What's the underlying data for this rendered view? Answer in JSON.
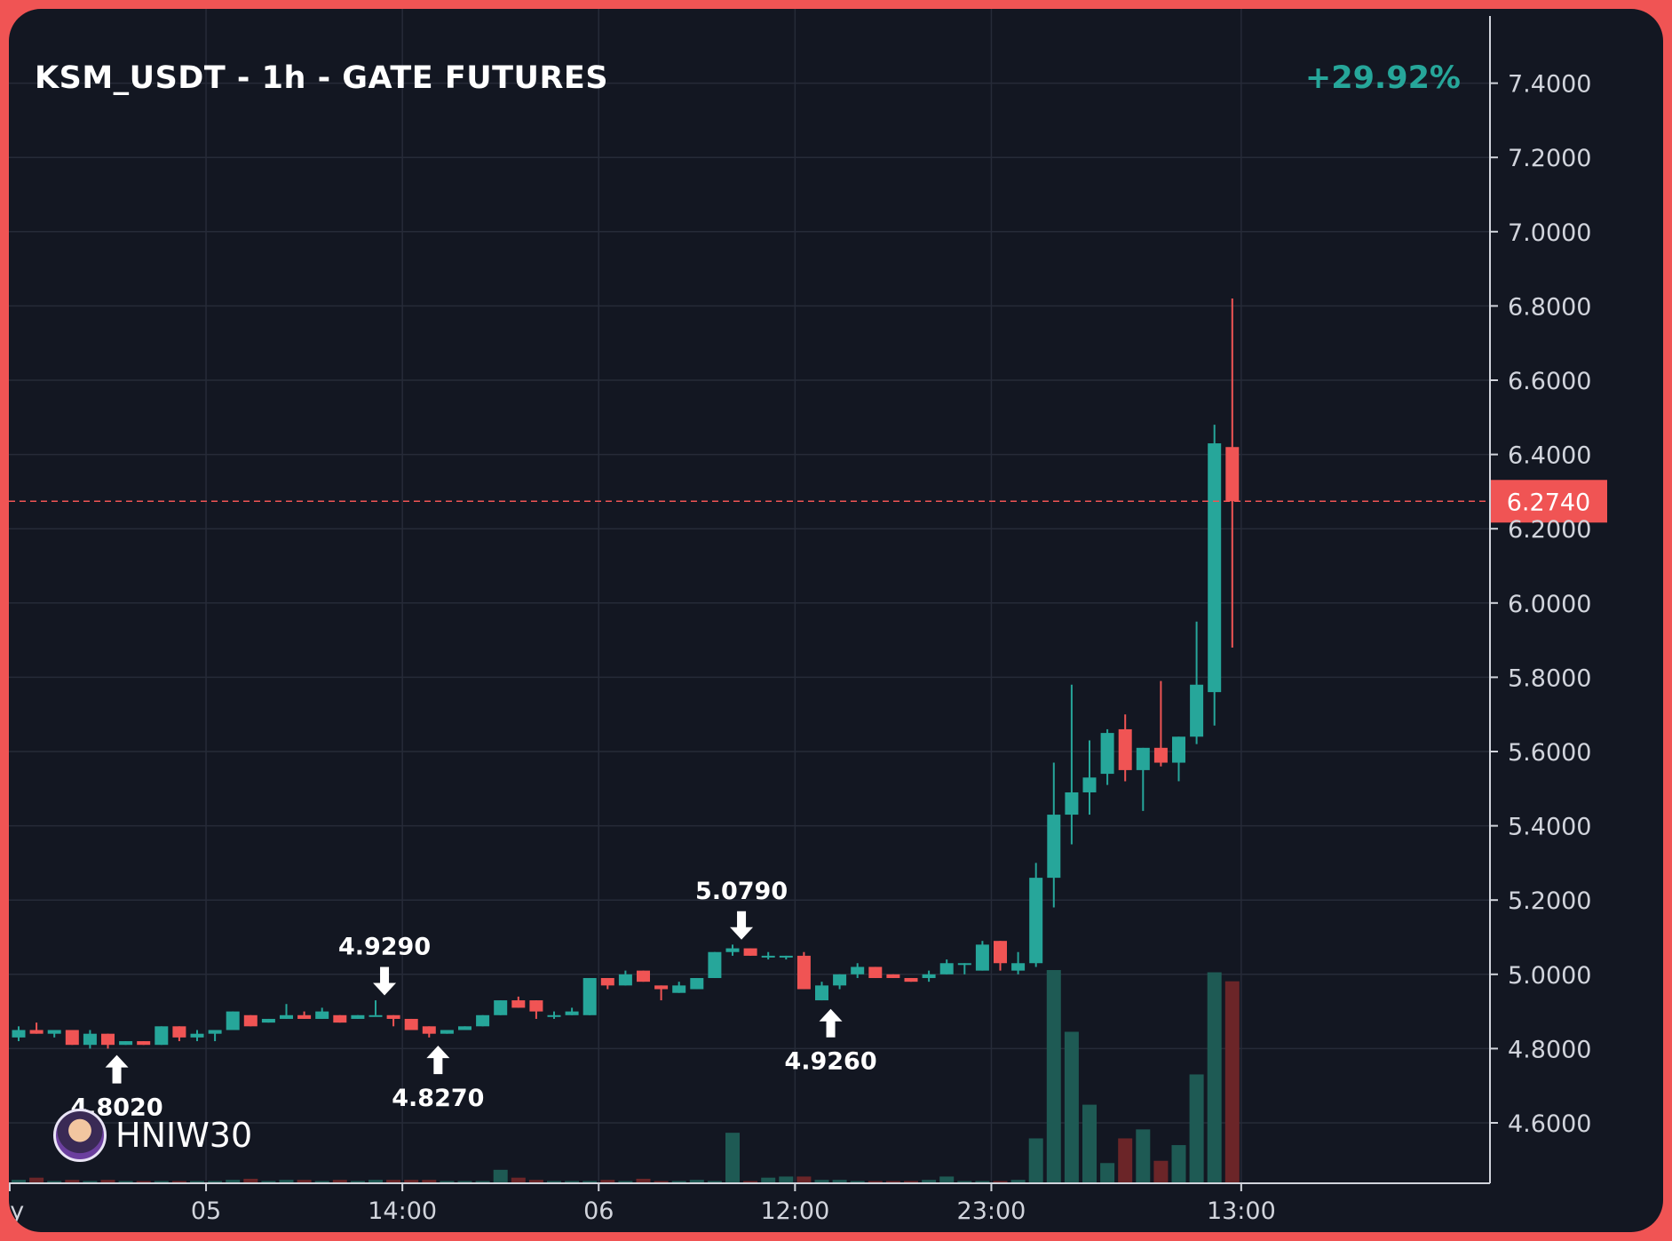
{
  "header": {
    "title": "KSM_USDT - 1h - GATE FUTURES",
    "change": "+29.92%"
  },
  "watermark": {
    "handle": "HNIW30",
    "avatar_icon": "avatar-icon"
  },
  "colors": {
    "background": "#131722",
    "frame": "#f05454",
    "up": "#26a69a",
    "down": "#f05454",
    "grid": "#262b38",
    "axis": "#d1d4dc",
    "volume_up": "#1e5a54",
    "volume_down": "#6b2528"
  },
  "chart_data": {
    "type": "candlestick",
    "title": "KSM_USDT - 1h - GATE FUTURES",
    "ylim": [
      4.44,
      7.56
    ],
    "y_ticks": [
      "4.6000",
      "4.8000",
      "5.0000",
      "5.2000",
      "5.4000",
      "5.6000",
      "5.8000",
      "6.0000",
      "6.2000",
      "6.4000",
      "6.6000",
      "6.8000",
      "7.0000",
      "7.2000",
      "7.4000"
    ],
    "x_ticks": [
      {
        "label": "ay",
        "index": -0.5
      },
      {
        "label": "05",
        "index": 10.5
      },
      {
        "label": "14:00",
        "index": 21.5
      },
      {
        "label": "06",
        "index": 32.5
      },
      {
        "label": "12:00",
        "index": 43.5
      },
      {
        "label": "23:00",
        "index": 54.5
      },
      {
        "label": "13:00",
        "index": 68.5
      }
    ],
    "last_price": "6.2740",
    "last_price_value": 6.274,
    "annotations": [
      {
        "label": "4.8020",
        "index": 5.5,
        "type": "low"
      },
      {
        "label": "4.9290",
        "index": 20.5,
        "type": "high"
      },
      {
        "label": "4.8270",
        "index": 23.5,
        "type": "low"
      },
      {
        "label": "5.0790",
        "index": 40.5,
        "type": "high"
      },
      {
        "label": "4.9260",
        "index": 45.5,
        "type": "low"
      }
    ],
    "candles": [
      [
        4.83,
        4.86,
        4.82,
        4.85,
        3
      ],
      [
        4.85,
        4.87,
        4.84,
        4.84,
        5
      ],
      [
        4.84,
        4.85,
        4.83,
        4.85,
        2
      ],
      [
        4.85,
        4.85,
        4.81,
        4.81,
        3
      ],
      [
        4.81,
        4.85,
        4.8,
        4.84,
        2
      ],
      [
        4.84,
        4.84,
        4.8,
        4.81,
        3
      ],
      [
        4.81,
        4.82,
        4.81,
        4.82,
        2
      ],
      [
        4.82,
        4.82,
        4.81,
        4.81,
        2
      ],
      [
        4.81,
        4.86,
        4.81,
        4.86,
        2
      ],
      [
        4.86,
        4.86,
        4.82,
        4.83,
        2
      ],
      [
        4.83,
        4.85,
        4.82,
        4.84,
        2
      ],
      [
        4.84,
        4.85,
        4.82,
        4.85,
        2
      ],
      [
        4.85,
        4.9,
        4.85,
        4.9,
        3
      ],
      [
        4.89,
        4.89,
        4.86,
        4.86,
        4
      ],
      [
        4.87,
        4.88,
        4.87,
        4.88,
        2
      ],
      [
        4.88,
        4.92,
        4.88,
        4.89,
        3
      ],
      [
        4.89,
        4.9,
        4.88,
        4.88,
        3
      ],
      [
        4.88,
        4.91,
        4.88,
        4.9,
        2
      ],
      [
        4.89,
        4.89,
        4.87,
        4.87,
        3
      ],
      [
        4.88,
        4.89,
        4.88,
        4.89,
        2
      ],
      [
        4.89,
        4.93,
        4.89,
        4.89,
        3
      ],
      [
        4.89,
        4.89,
        4.86,
        4.88,
        3
      ],
      [
        4.88,
        4.88,
        4.85,
        4.85,
        3
      ],
      [
        4.86,
        4.86,
        4.83,
        4.84,
        3
      ],
      [
        4.84,
        4.85,
        4.84,
        4.85,
        2
      ],
      [
        4.85,
        4.86,
        4.85,
        4.86,
        2
      ],
      [
        4.86,
        4.89,
        4.86,
        4.89,
        2
      ],
      [
        4.89,
        4.93,
        4.89,
        4.93,
        12
      ],
      [
        4.93,
        4.94,
        4.91,
        4.91,
        5
      ],
      [
        4.93,
        4.93,
        4.88,
        4.9,
        3
      ],
      [
        4.89,
        4.9,
        4.88,
        4.89,
        2
      ],
      [
        4.89,
        4.91,
        4.89,
        4.9,
        2
      ],
      [
        4.89,
        4.99,
        4.89,
        4.99,
        2
      ],
      [
        4.99,
        4.99,
        4.96,
        4.97,
        3
      ],
      [
        4.97,
        5.01,
        4.97,
        5.0,
        2
      ],
      [
        5.01,
        5.01,
        4.98,
        4.98,
        4
      ],
      [
        4.97,
        4.97,
        4.93,
        4.96,
        2
      ],
      [
        4.95,
        4.98,
        4.95,
        4.97,
        2
      ],
      [
        4.96,
        4.99,
        4.96,
        4.99,
        3
      ],
      [
        4.99,
        5.06,
        4.99,
        5.06,
        2
      ],
      [
        5.06,
        5.08,
        5.05,
        5.07,
        45
      ],
      [
        5.07,
        5.07,
        5.05,
        5.05,
        2
      ],
      [
        5.05,
        5.06,
        5.04,
        5.05,
        5
      ],
      [
        5.05,
        5.05,
        5.04,
        5.05,
        6
      ],
      [
        5.05,
        5.06,
        4.96,
        4.96,
        6
      ],
      [
        4.93,
        4.98,
        4.93,
        4.97,
        3
      ],
      [
        4.97,
        5.0,
        4.96,
        5.0,
        3
      ],
      [
        5.0,
        5.03,
        4.99,
        5.02,
        2
      ],
      [
        5.02,
        5.02,
        4.99,
        4.99,
        2
      ],
      [
        5.0,
        5.0,
        4.99,
        4.99,
        2
      ],
      [
        4.99,
        4.99,
        4.98,
        4.98,
        2
      ],
      [
        4.99,
        5.01,
        4.98,
        5.0,
        3
      ],
      [
        5.0,
        5.04,
        5.0,
        5.03,
        6
      ],
      [
        5.03,
        5.03,
        5.0,
        5.03,
        2
      ],
      [
        5.01,
        5.09,
        5.01,
        5.08,
        2
      ],
      [
        5.09,
        5.09,
        5.01,
        5.03,
        2
      ],
      [
        5.01,
        5.06,
        5.0,
        5.03,
        3
      ],
      [
        5.03,
        5.3,
        5.02,
        5.26,
        40
      ],
      [
        5.26,
        5.57,
        5.18,
        5.43,
        190
      ],
      [
        5.43,
        5.78,
        5.35,
        5.49,
        135
      ],
      [
        5.49,
        5.63,
        5.43,
        5.53,
        70
      ],
      [
        5.54,
        5.66,
        5.51,
        5.65,
        18
      ],
      [
        5.66,
        5.7,
        5.52,
        5.55,
        40
      ],
      [
        5.55,
        5.61,
        5.44,
        5.61,
        48
      ],
      [
        5.61,
        5.79,
        5.56,
        5.57,
        20
      ],
      [
        5.57,
        5.64,
        5.52,
        5.64,
        34
      ],
      [
        5.64,
        5.95,
        5.62,
        5.78,
        97
      ],
      [
        5.76,
        6.48,
        5.67,
        6.43,
        188
      ],
      [
        6.42,
        6.82,
        5.88,
        6.274,
        180
      ]
    ]
  }
}
